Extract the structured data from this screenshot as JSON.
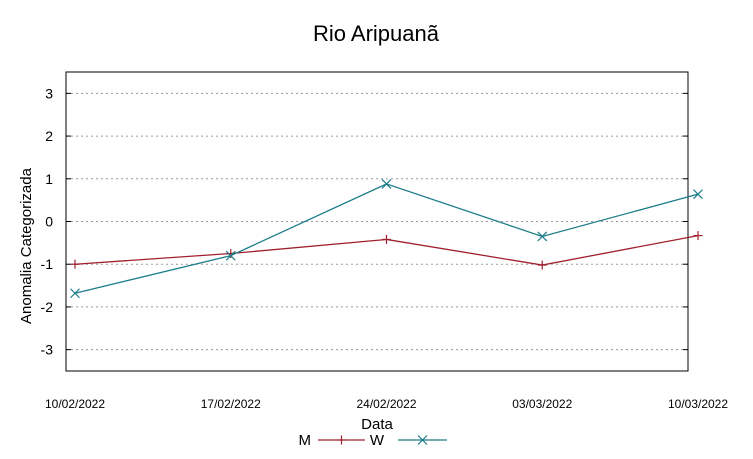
{
  "chart_data": {
    "type": "line",
    "title": "Rio Aripuanã",
    "xlabel": "Data",
    "ylabel": "Anomalia Categorizada",
    "categories": [
      "10/02/2022",
      "17/02/2022",
      "24/02/2022",
      "03/03/2022",
      "10/03/2022"
    ],
    "ylim": [
      -3.5,
      3.5
    ],
    "yticks": [
      "3",
      "2",
      "1",
      "0",
      "-1",
      "-2",
      "-3"
    ],
    "ytick_values": [
      3,
      2,
      1,
      0,
      -1,
      -2,
      -3
    ],
    "grid": true,
    "legend_position": "bottom",
    "series": [
      {
        "name": "M",
        "values": [
          -1.0,
          -0.75,
          -0.42,
          -1.02,
          -0.33
        ],
        "color": "#a0202e",
        "marker": "plus"
      },
      {
        "name": "W",
        "values": [
          -1.68,
          -0.8,
          0.88,
          -0.35,
          0.64
        ],
        "color": "#1d7d8a",
        "marker": "x"
      }
    ]
  }
}
